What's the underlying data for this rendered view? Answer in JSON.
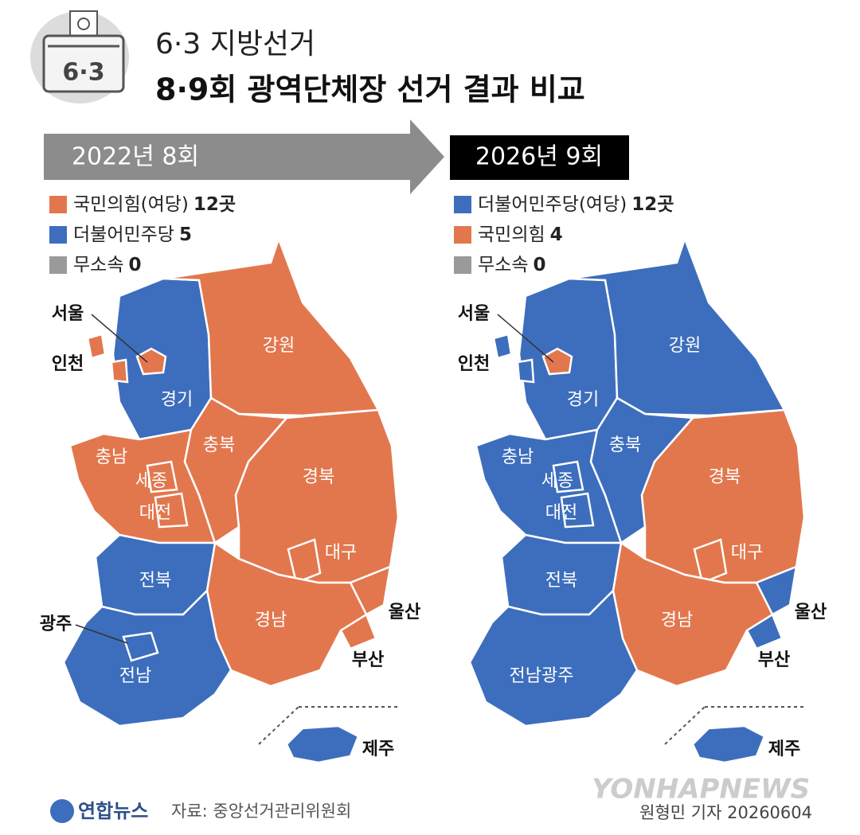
{
  "header": {
    "kicker": "6·3 지방선거",
    "title": "8·9회 광역단체장 선거 결과 비교",
    "icon_label": "6·3"
  },
  "maps": [
    {
      "banner": "2022년 8회",
      "legend": [
        {
          "label": "국민의힘(여당)",
          "count": "12곳",
          "color": "#e2774e"
        },
        {
          "label": "더불어민주당",
          "count": "5",
          "color": "#3d6ebd"
        },
        {
          "label": "무소속",
          "count": "0",
          "color": "#9a9a9a"
        }
      ],
      "regions": [
        {
          "label": "경기",
          "color": "#3d6ebd"
        },
        {
          "label": "강원",
          "color": "#e2774e"
        },
        {
          "label": "서울",
          "color": "#e2774e"
        },
        {
          "label": "인천",
          "color": "#e2774e"
        },
        {
          "label": "충남",
          "color": "#e2774e"
        },
        {
          "label": "세종",
          "color": "#e2774e"
        },
        {
          "label": "대전",
          "color": "#e2774e"
        },
        {
          "label": "충북",
          "color": "#e2774e"
        },
        {
          "label": "경북",
          "color": "#e2774e"
        },
        {
          "label": "대구",
          "color": "#e2774e"
        },
        {
          "label": "울산",
          "color": "#e2774e"
        },
        {
          "label": "부산",
          "color": "#e2774e"
        },
        {
          "label": "경남",
          "color": "#e2774e"
        },
        {
          "label": "전북",
          "color": "#3d6ebd"
        },
        {
          "label": "전남",
          "color": "#3d6ebd"
        },
        {
          "label": "광주",
          "color": "#3d6ebd"
        },
        {
          "label": "제주",
          "color": "#3d6ebd"
        }
      ]
    },
    {
      "banner": "2026년 9회",
      "legend": [
        {
          "label": "더불어민주당(여당)",
          "count": "12곳",
          "color": "#3d6ebd"
        },
        {
          "label": "국민의힘",
          "count": "4",
          "color": "#e2774e"
        },
        {
          "label": "무소속",
          "count": "0",
          "color": "#9a9a9a"
        }
      ],
      "regions": [
        {
          "label": "경기",
          "color": "#3d6ebd"
        },
        {
          "label": "강원",
          "color": "#3d6ebd"
        },
        {
          "label": "서울",
          "color": "#e2774e"
        },
        {
          "label": "인천",
          "color": "#3d6ebd"
        },
        {
          "label": "충남",
          "color": "#3d6ebd"
        },
        {
          "label": "세종",
          "color": "#3d6ebd"
        },
        {
          "label": "대전",
          "color": "#3d6ebd"
        },
        {
          "label": "충북",
          "color": "#3d6ebd"
        },
        {
          "label": "경북",
          "color": "#e2774e"
        },
        {
          "label": "대구",
          "color": "#e2774e"
        },
        {
          "label": "울산",
          "color": "#3d6ebd"
        },
        {
          "label": "부산",
          "color": "#3d6ebd"
        },
        {
          "label": "경남",
          "color": "#e2774e"
        },
        {
          "label": "전북",
          "color": "#3d6ebd"
        },
        {
          "label": "전남광주",
          "color": "#3d6ebd"
        },
        {
          "label": "제주",
          "color": "#3d6ebd"
        }
      ]
    }
  ],
  "footer": {
    "logo": "연합뉴스",
    "source": "자료: 중앙선거관리위원회",
    "watermark": "YONHAPNEWS",
    "credit": "원형민 기자 20260604"
  }
}
